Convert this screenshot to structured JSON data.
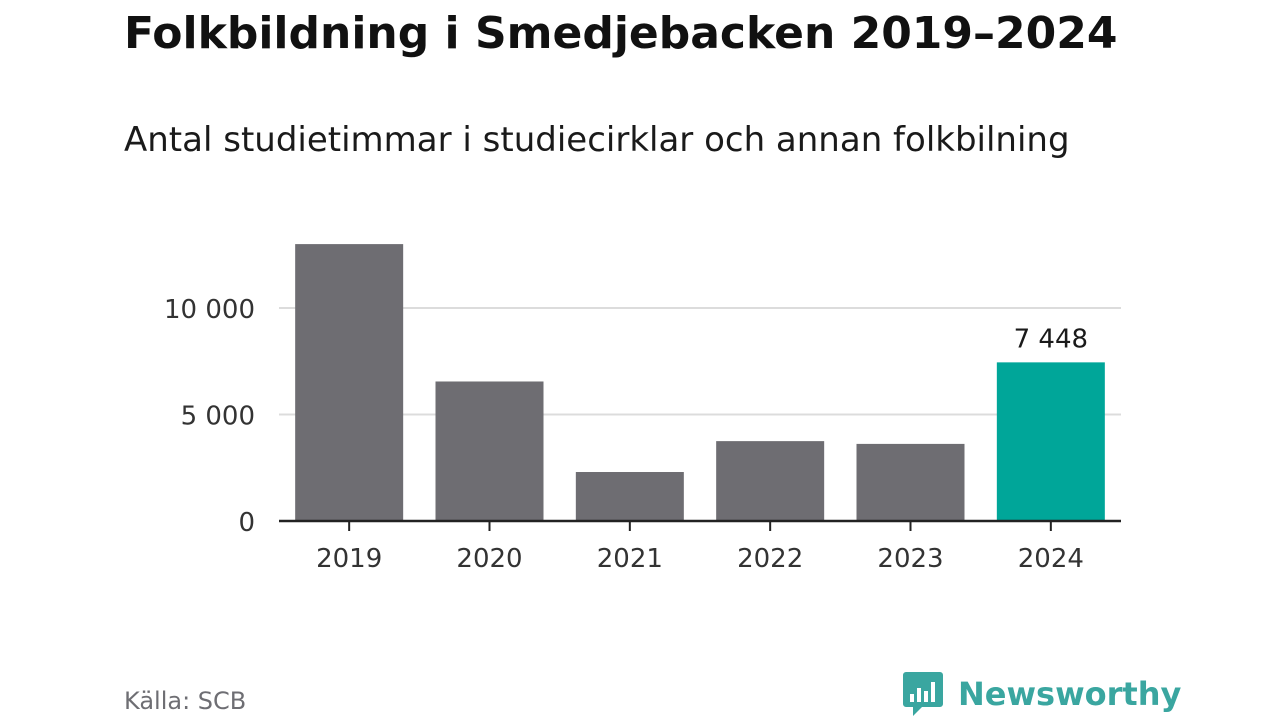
{
  "header": {
    "title": "Folkbildning i Smedjebacken 2019–2024",
    "subtitle": "Antal studietimmar i studiecirklar och annan folkbilning"
  },
  "footer": {
    "source": "Källa: SCB",
    "brand": "Newsworthy"
  },
  "colors": {
    "bar": "#6e6d72",
    "highlight": "#00a699",
    "grid": "#dcdcdc",
    "axis": "#222222",
    "brand": "#3aa6a0"
  },
  "chart_data": {
    "type": "bar",
    "categories": [
      "2019",
      "2020",
      "2021",
      "2022",
      "2023",
      "2024"
    ],
    "values": [
      13000,
      6550,
      2300,
      3750,
      3620,
      7448
    ],
    "highlight_index": 5,
    "data_labels": [
      {
        "index": 5,
        "text": "7 448"
      }
    ],
    "y_ticks": [
      {
        "value": 0,
        "label": "0"
      },
      {
        "value": 5000,
        "label": "5 000"
      },
      {
        "value": 10000,
        "label": "10 000"
      }
    ],
    "ylim": [
      0,
      13000
    ],
    "grid": true,
    "legend": "none"
  }
}
